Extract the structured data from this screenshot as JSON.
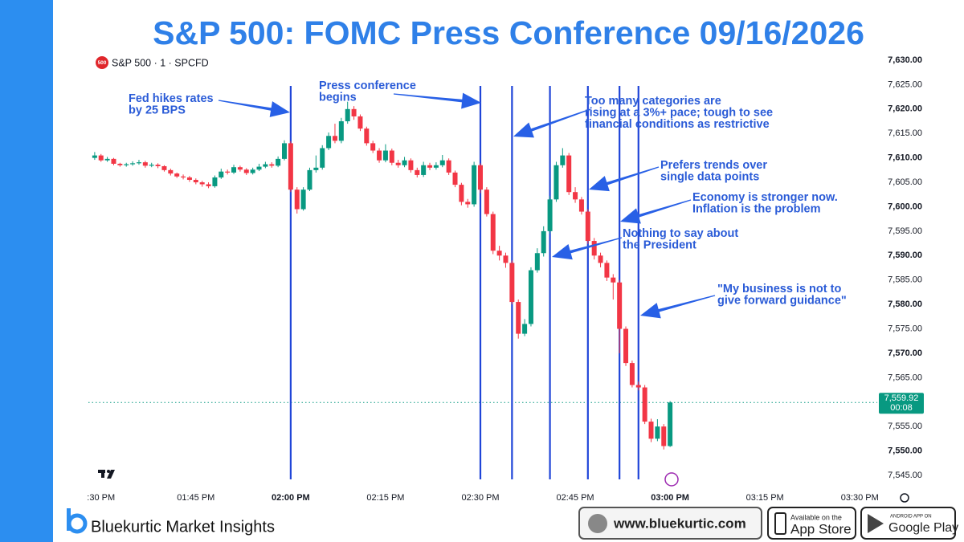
{
  "header": {
    "title": "S&P 500: FOMC Press Conference 09/16/2026"
  },
  "chart_data": {
    "type": "candlestick",
    "badge": "500",
    "symbol": "S&P 500 · 1 · SPCFD",
    "colors": {
      "up": "#089981",
      "down": "#f23645",
      "event": "#1f45d8",
      "annotation": "#2a5bd7"
    },
    "grid": false,
    "xlim": [
      "01:28 PM",
      "03:32 PM"
    ],
    "xticks": [
      {
        "value": "01:30 PM",
        "label": ":30 PM"
      },
      "01:45 PM",
      "02:00 PM",
      "02:15 PM",
      "02:30 PM",
      "02:45 PM",
      "03:00 PM",
      "03:15 PM",
      "03:30 PM"
    ],
    "ylim": [
      7545,
      7630
    ],
    "yticks": [
      {
        "value": 7545,
        "label": "7,545.00"
      },
      {
        "value": 7550,
        "label": "7,550.00"
      },
      {
        "value": 7555,
        "label": "7,555.00"
      },
      {
        "value": 7560,
        "label": "7,560.00"
      },
      {
        "value": 7565,
        "label": "7,565.00"
      },
      {
        "value": 7570,
        "label": "7,570.00"
      },
      {
        "value": 7575,
        "label": "7,575.00"
      },
      {
        "value": 7580,
        "label": "7,580.00"
      },
      {
        "value": 7585,
        "label": "7,585.00"
      },
      {
        "value": 7590,
        "label": "7,590.00"
      },
      {
        "value": 7595,
        "label": "7,595.00"
      },
      {
        "value": 7600,
        "label": "7,600.00"
      },
      {
        "value": 7605,
        "label": "7,605.00"
      },
      {
        "value": 7610,
        "label": "7,610.00"
      },
      {
        "value": 7615,
        "label": "7,615.00"
      },
      {
        "value": 7620,
        "label": "7,620.00"
      },
      {
        "value": 7625,
        "label": "7,625.00"
      },
      {
        "value": 7630,
        "label": "7,630.00"
      }
    ],
    "x": [
      "01:29 PM",
      "01:30 PM",
      "01:31 PM",
      "01:32 PM",
      "01:33 PM",
      "01:34 PM",
      "01:35 PM",
      "01:36 PM",
      "01:37 PM",
      "01:38 PM",
      "01:39 PM",
      "01:40 PM",
      "01:41 PM",
      "01:42 PM",
      "01:43 PM",
      "01:44 PM",
      "01:45 PM",
      "01:46 PM",
      "01:47 PM",
      "01:48 PM",
      "01:49 PM",
      "01:50 PM",
      "01:51 PM",
      "01:52 PM",
      "01:53 PM",
      "01:54 PM",
      "01:55 PM",
      "01:56 PM",
      "01:57 PM",
      "01:58 PM",
      "01:59 PM",
      "02:00 PM",
      "02:01 PM",
      "02:02 PM",
      "02:03 PM",
      "02:04 PM",
      "02:05 PM",
      "02:06 PM",
      "02:07 PM",
      "02:08 PM",
      "02:09 PM",
      "02:10 PM",
      "02:11 PM",
      "02:12 PM",
      "02:13 PM",
      "02:14 PM",
      "02:15 PM",
      "02:16 PM",
      "02:17 PM",
      "02:18 PM",
      "02:19 PM",
      "02:20 PM",
      "02:21 PM",
      "02:22 PM",
      "02:23 PM",
      "02:24 PM",
      "02:25 PM",
      "02:26 PM",
      "02:27 PM",
      "02:28 PM",
      "02:29 PM",
      "02:30 PM",
      "02:31 PM",
      "02:32 PM",
      "02:33 PM",
      "02:34 PM",
      "02:35 PM",
      "02:36 PM",
      "02:37 PM",
      "02:38 PM",
      "02:39 PM",
      "02:40 PM",
      "02:41 PM",
      "02:42 PM",
      "02:43 PM",
      "02:44 PM",
      "02:45 PM",
      "02:46 PM",
      "02:47 PM",
      "02:48 PM",
      "02:49 PM",
      "02:50 PM",
      "02:51 PM",
      "02:52 PM",
      "02:53 PM",
      "02:54 PM",
      "02:55 PM",
      "02:56 PM",
      "02:57 PM",
      "02:58 PM",
      "02:59 PM",
      "03:00 PM"
    ],
    "open": [
      7610.0,
      7610.5,
      7609.5,
      7609.8,
      7608.8,
      7608.5,
      7608.7,
      7608.9,
      7609.1,
      7608.4,
      7608.6,
      7608.3,
      7607.5,
      7606.8,
      7606.2,
      7606.0,
      7605.5,
      7605.0,
      7604.6,
      7604.2,
      7606.0,
      7607.2,
      7607.0,
      7608.1,
      7607.6,
      7606.9,
      7607.6,
      7608.2,
      7608.7,
      7608.4,
      7609.8,
      7613.0,
      7603.5,
      7599.5,
      7603.5,
      7607.5,
      7608.0,
      7612.0,
      7614.5,
      7613.5,
      7617.5,
      7620.0,
      7618.5,
      7616.0,
      7613.0,
      7611.5,
      7609.5,
      7611.5,
      7609.0,
      7608.5,
      7609.5,
      7607.5,
      7606.5,
      7608.5,
      7608.0,
      7608.5,
      7609.5,
      7607.0,
      7604.5,
      7601.0,
      7600.5,
      7608.5,
      7603.5,
      7598.5,
      7591.0,
      7590.0,
      7588.5,
      7580.5,
      7574.0,
      7576.0,
      7587.0,
      7590.5,
      7595.0,
      7601.5,
      7608.5,
      7610.5,
      7603.0,
      7601.5,
      7599.0,
      7593.0,
      7590.0,
      7588.5,
      7585.5,
      7584.5,
      7575.0,
      7568.0,
      7563.5,
      7563.0,
      7556.0,
      7552.5,
      7555.0,
      7551.0
    ],
    "high": [
      7611.2,
      7610.8,
      7610.2,
      7610.0,
      7609.0,
      7609.0,
      7609.3,
      7609.6,
      7609.4,
      7609.0,
      7608.9,
      7608.5,
      7607.8,
      7607.0,
      7606.6,
      7606.3,
      7605.8,
      7605.3,
      7605.0,
      7606.4,
      7607.8,
      7607.6,
      7608.6,
      7608.4,
      7607.9,
      7608.0,
      7608.8,
      7609.2,
      7609.1,
      7610.3,
      7613.6,
      7613.4,
      7604.0,
      7604.0,
      7608.0,
      7610.5,
      7612.6,
      7615.2,
      7617.0,
      7618.2,
      7621.5,
      7620.6,
      7618.9,
      7616.4,
      7613.5,
      7612.0,
      7612.8,
      7611.9,
      7609.6,
      7610.2,
      7609.9,
      7608.0,
      7609.2,
      7609.0,
      7609.1,
      7610.6,
      7609.9,
      7607.4,
      7604.9,
      7601.6,
      7609.2,
      7608.9,
      7604.0,
      7599.0,
      7592.0,
      7590.6,
      7589.0,
      7581.0,
      7577.0,
      7587.6,
      7591.5,
      7596.0,
      7602.2,
      7609.2,
      7612.0,
      7611.0,
      7604.0,
      7602.0,
      7599.5,
      7593.6,
      7590.6,
      7589.0,
      7586.2,
      7585.0,
      7575.5,
      7568.5,
      7564.2,
      7563.5,
      7556.6,
      7556.5,
      7555.5,
      7560.2
    ],
    "low": [
      7609.6,
      7609.2,
      7609.2,
      7608.5,
      7608.2,
      7608.2,
      7608.4,
      7608.6,
      7608.0,
      7608.1,
      7607.9,
      7607.2,
      7606.4,
      7605.9,
      7605.6,
      7605.1,
      7604.6,
      7604.1,
      7603.8,
      7603.9,
      7605.7,
      7606.6,
      7606.7,
      7607.2,
      7606.5,
      7606.6,
      7607.3,
      7607.9,
      7608.0,
      7608.1,
      7609.5,
      7603.0,
      7598.6,
      7599.2,
      7603.2,
      7607.0,
      7607.6,
      7611.6,
      7613.0,
      7613.0,
      7617.0,
      7617.8,
      7615.5,
      7612.5,
      7611.0,
      7609.0,
      7609.1,
      7608.5,
      7608.0,
      7608.1,
      7607.0,
      7606.0,
      7606.1,
      7607.5,
      7607.6,
      7608.1,
      7606.5,
      7604.0,
      7600.3,
      7599.8,
      7600.0,
      7602.8,
      7598.0,
      7590.3,
      7589.0,
      7587.5,
      7580.0,
      7573.0,
      7573.5,
      7575.5,
      7586.5,
      7589.8,
      7594.5,
      7601.0,
      7608.0,
      7602.4,
      7600.8,
      7598.4,
      7592.4,
      7589.2,
      7587.6,
      7584.8,
      7581.0,
      7570.0,
      7567.4,
      7563.0,
      7562.4,
      7555.5,
      7551.8,
      7552.0,
      7550.3,
      7550.8
    ],
    "close": [
      7610.5,
      7609.5,
      7609.8,
      7608.8,
      7608.5,
      7608.7,
      7608.9,
      7609.1,
      7608.4,
      7608.6,
      7608.3,
      7607.5,
      7606.8,
      7606.2,
      7606.0,
      7605.5,
      7605.0,
      7604.6,
      7604.2,
      7606.0,
      7607.2,
      7607.0,
      7608.1,
      7607.6,
      7606.9,
      7607.6,
      7608.2,
      7608.7,
      7608.4,
      7609.8,
      7613.0,
      7603.5,
      7599.5,
      7603.5,
      7607.5,
      7608.0,
      7612.0,
      7614.5,
      7613.5,
      7617.5,
      7620.0,
      7618.5,
      7616.0,
      7613.0,
      7611.5,
      7609.5,
      7611.5,
      7609.0,
      7608.5,
      7609.5,
      7607.5,
      7606.5,
      7608.5,
      7608.0,
      7608.5,
      7609.5,
      7607.0,
      7604.5,
      7601.0,
      7600.5,
      7608.5,
      7603.5,
      7598.5,
      7591.0,
      7590.0,
      7588.5,
      7580.5,
      7574.0,
      7576.0,
      7587.0,
      7590.5,
      7595.0,
      7601.5,
      7608.5,
      7610.5,
      7603.0,
      7601.5,
      7599.0,
      7593.0,
      7590.0,
      7588.5,
      7585.5,
      7584.5,
      7575.0,
      7568.0,
      7563.5,
      7563.0,
      7556.0,
      7552.5,
      7555.0,
      7551.0,
      7559.92
    ],
    "last_price": {
      "value": 7559.92,
      "label": "7,559.92"
    },
    "countdown": "00:08",
    "events": [
      {
        "time": "02:00 PM",
        "text": [
          "Fed hikes rates",
          "by 25 BPS"
        ]
      },
      {
        "time": "02:30 PM",
        "text": [
          "Press conference",
          "begins"
        ]
      },
      {
        "time": "02:35 PM",
        "text": [
          "Too many categories are",
          "rising at a 3%+ pace; tough to see",
          "financial conditions as restrictive"
        ]
      },
      {
        "time": "02:41 PM",
        "text": [
          "Nothing to say about",
          "the President"
        ]
      },
      {
        "time": "02:47 PM",
        "text": [
          "Prefers trends over",
          "single data points"
        ]
      },
      {
        "time": "02:52 PM",
        "text": [
          "Economy is stronger now.",
          "Inflation is the problem"
        ]
      },
      {
        "time": "02:55 PM",
        "text": [
          "\"My business is not to",
          "give forward guidance\""
        ]
      }
    ]
  },
  "footer": {
    "brand": "Bluekurtic Market Insights",
    "website": "www.bluekurtic.com",
    "app_store": {
      "small": "Available on the",
      "big": "App Store"
    },
    "google_play": {
      "small": "ANDROID APP ON",
      "big": "Google Play"
    }
  }
}
